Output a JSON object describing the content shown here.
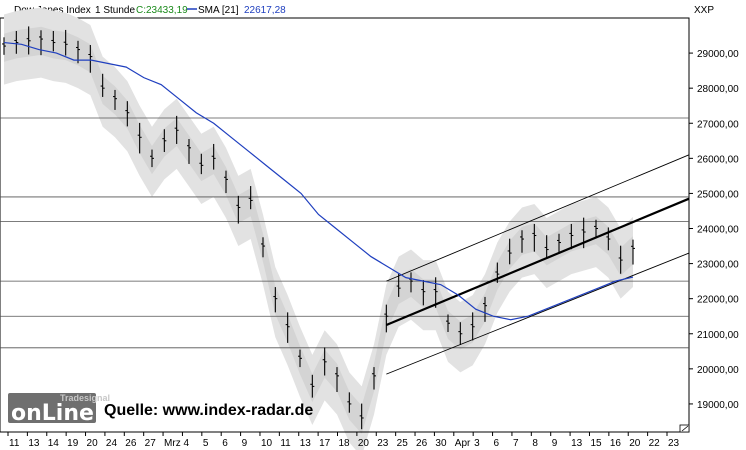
{
  "header": {
    "instrument": "Dow Jones Index",
    "interval": "1 Stunde",
    "close_label": "C:23433,19",
    "sma_icon": "sma-line-icon",
    "sma_label": "SMA [21]",
    "sma_value": "22617,28",
    "axis_code": "XXP"
  },
  "source_text": "Quelle: www.index-radar.de",
  "logo": {
    "top": "Tradesignal",
    "main": "onLine"
  },
  "colors": {
    "price": "#000000",
    "sma": "#1f3fbf",
    "band": "#e2e2e2",
    "band_inner": "#cfcfcf",
    "hline": "#505050",
    "channel": "#000000",
    "close_green": "#1a8a1a"
  },
  "chart_data": {
    "type": "line",
    "title": "Dow Jones Index 1 Stunde",
    "ylim": [
      18200,
      30000
    ],
    "y_ticks": [
      "29000,00",
      "28000,00",
      "27000,00",
      "26000,00",
      "25000,00",
      "24000,00",
      "23000,00",
      "22000,00",
      "21000,00",
      "20000,00",
      "19000,00"
    ],
    "x_ticks": [
      "11",
      "13",
      "14",
      "19",
      "20",
      "24",
      "26",
      "27",
      "Mrz",
      "4",
      "5",
      "6",
      "9",
      "10",
      "11",
      "13",
      "17",
      "18",
      "20",
      "23",
      "25",
      "26",
      "30",
      "Apr",
      "3",
      "6",
      "7",
      "8",
      "9",
      "13",
      "15",
      "16",
      "20",
      "22",
      "23"
    ],
    "series": [
      {
        "name": "Dow Jones Index",
        "values": [
          29200,
          29300,
          29350,
          29400,
          29300,
          29250,
          29100,
          28900,
          28000,
          27700,
          27300,
          26600,
          26000,
          26500,
          26800,
          26300,
          25800,
          26000,
          25400,
          24600,
          24800,
          23500,
          22000,
          21200,
          20300,
          19500,
          20200,
          19800,
          19000,
          18600,
          19800,
          21500,
          22300,
          22500,
          22200,
          22200,
          21300,
          21000,
          21200,
          21800,
          22700,
          23300,
          23700,
          23800,
          23400,
          23600,
          23800,
          23900,
          24000,
          23700,
          23100,
          23433
        ]
      },
      {
        "name": "SMA [21]",
        "values": [
          29300,
          29250,
          29100,
          29000,
          28800,
          28800,
          28700,
          28600,
          28300,
          28100,
          27700,
          27300,
          27000,
          26600,
          26200,
          25800,
          25400,
          25000,
          24400,
          24000,
          23600,
          23200,
          22900,
          22600,
          22500,
          22400,
          22100,
          21700,
          21500,
          21400,
          21500,
          21700,
          21900,
          22100,
          22300,
          22500,
          22617
        ]
      }
    ],
    "horizontal_levels": [
      27150,
      24900,
      24200,
      22500,
      21500,
      20600
    ],
    "channel_lines": [
      {
        "role": "upper",
        "from": [
          22500,
          0
        ],
        "to": [
          26100,
          1
        ]
      },
      {
        "role": "middle",
        "from": [
          21250,
          0
        ],
        "to": [
          24850,
          1
        ]
      },
      {
        "role": "lower",
        "from": [
          19850,
          0
        ],
        "to": [
          23300,
          1
        ]
      }
    ],
    "grid": false
  }
}
